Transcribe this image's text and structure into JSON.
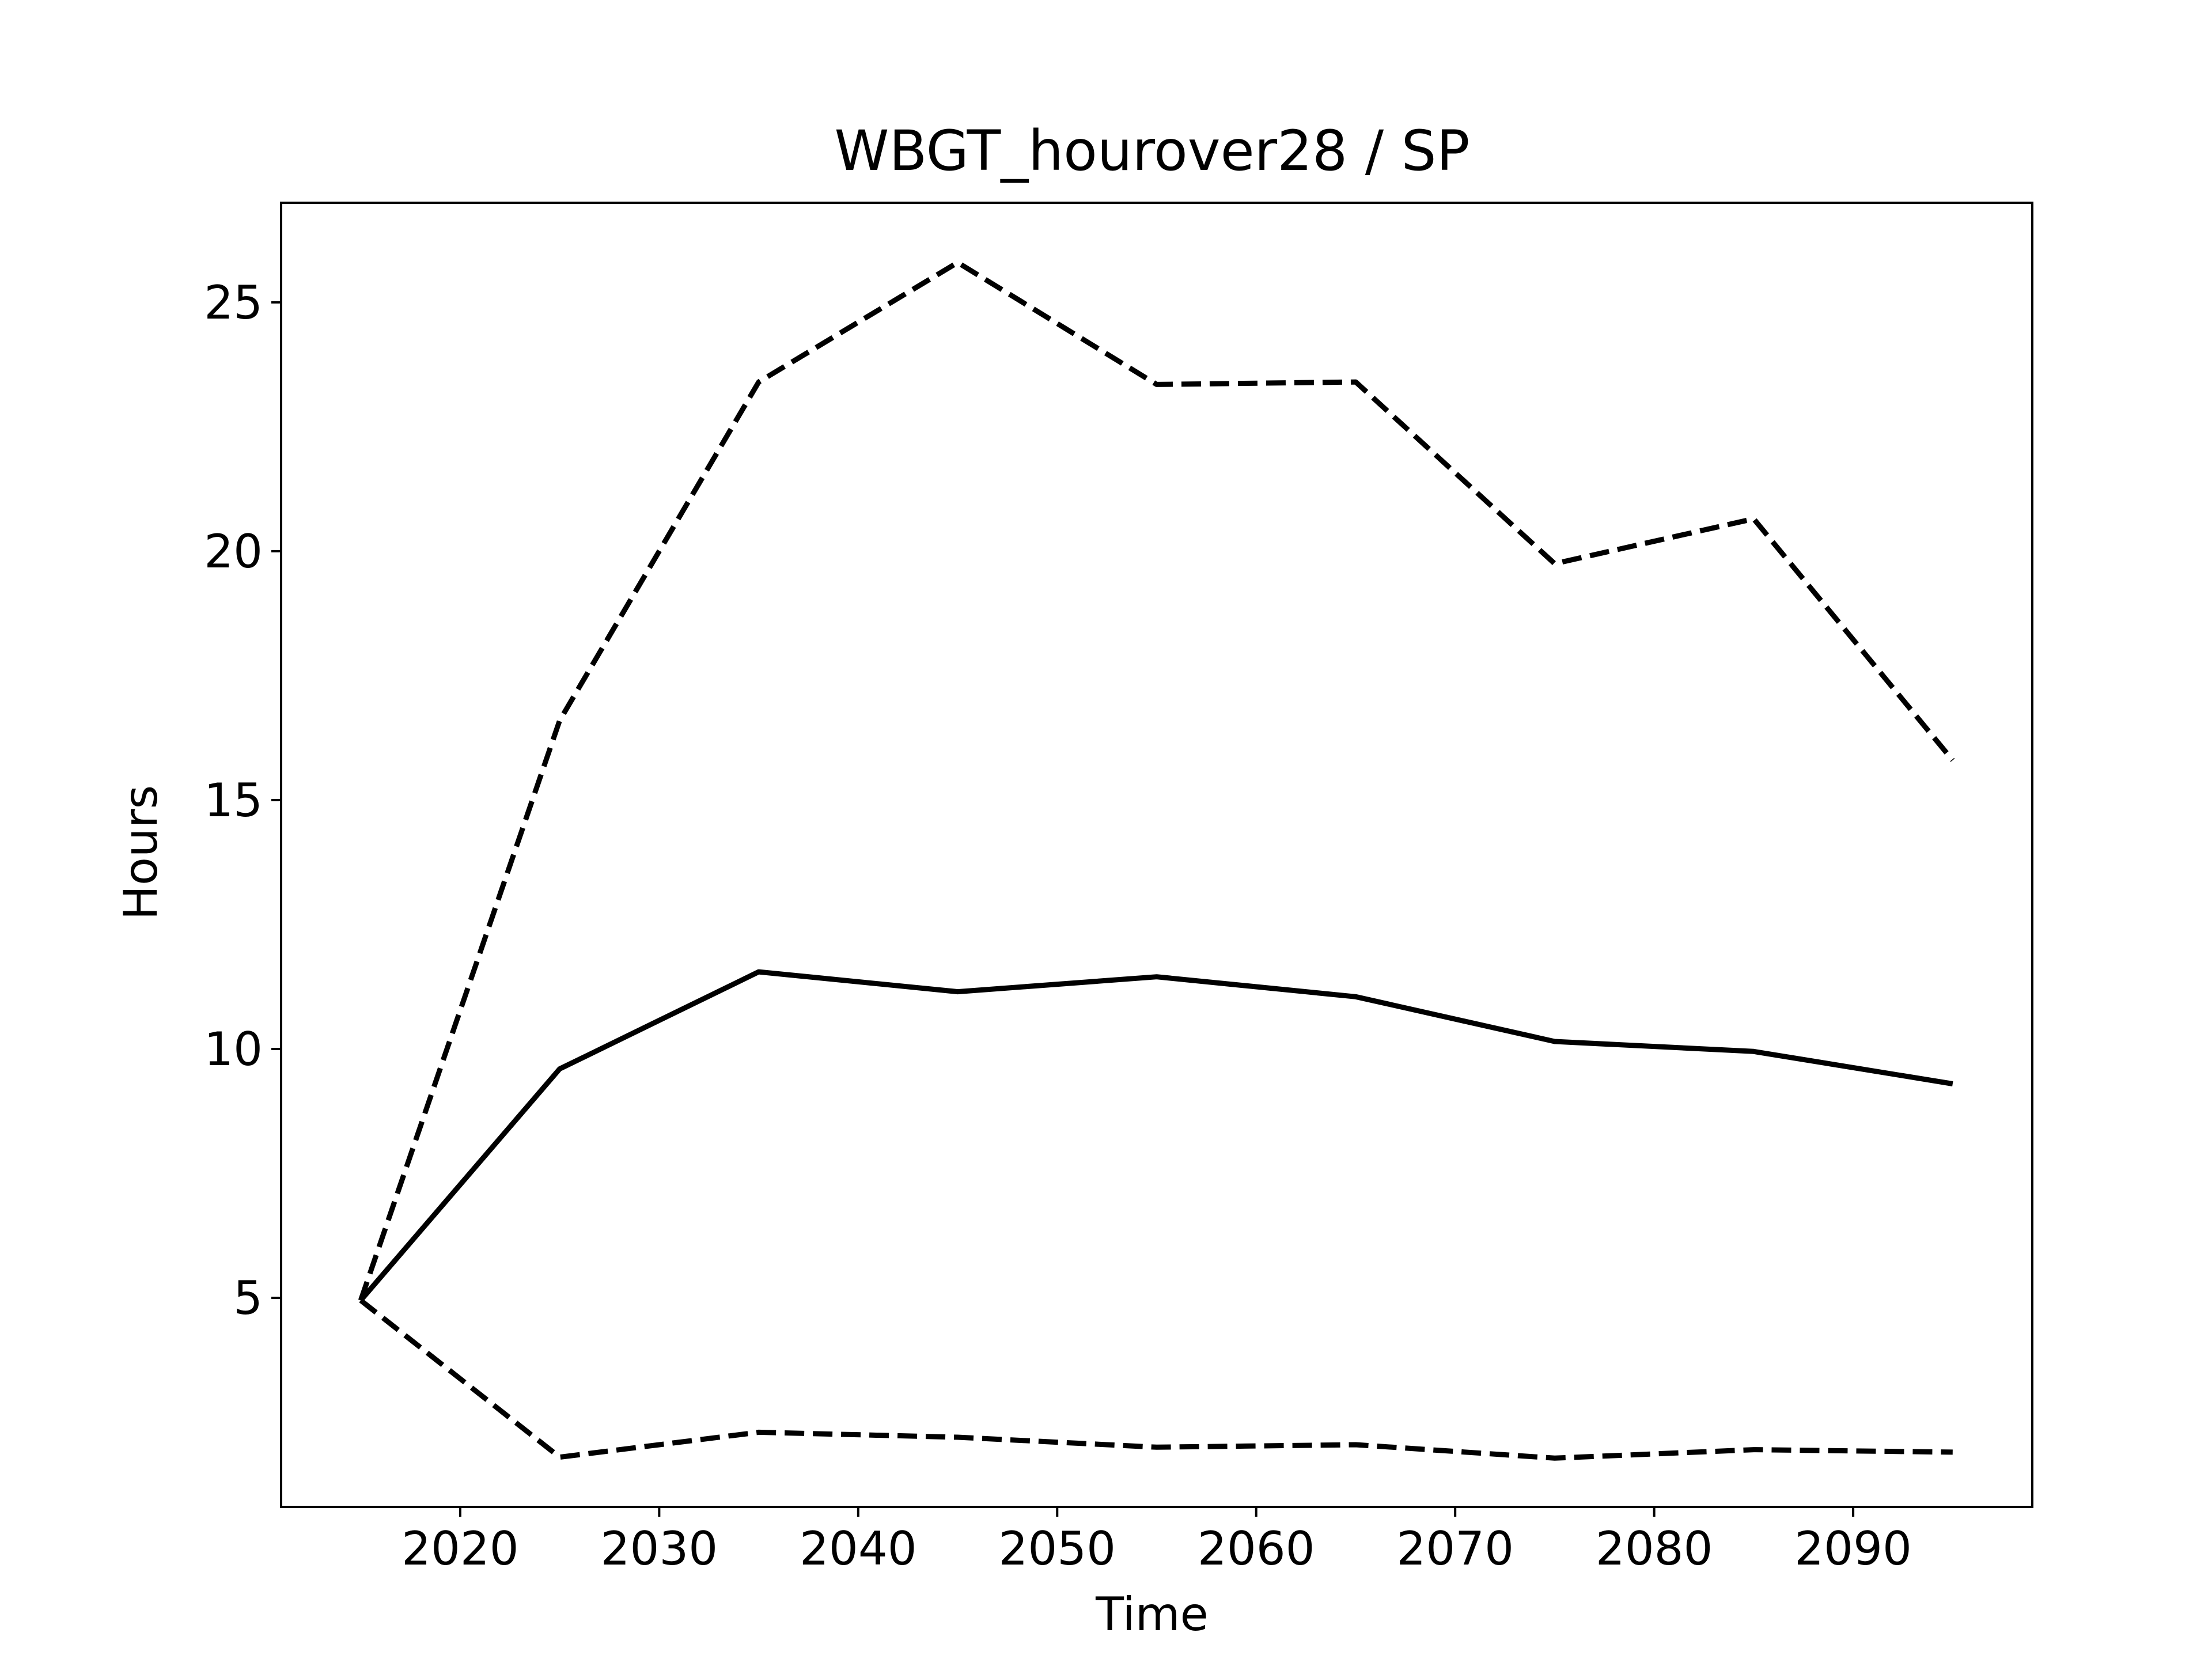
{
  "chart_data": {
    "type": "line",
    "title": "WBGT_hourover28 / SP",
    "xlabel": "Time",
    "ylabel": "Hours",
    "xlim": [
      2011,
      2099
    ],
    "ylim": [
      0.8,
      27
    ],
    "grid": false,
    "x_ticks": [
      2020,
      2030,
      2040,
      2050,
      2060,
      2070,
      2080,
      2090
    ],
    "y_ticks": [
      5,
      10,
      15,
      20,
      25
    ],
    "x": [
      2015,
      2025,
      2035,
      2045,
      2055,
      2065,
      2075,
      2085,
      2095
    ],
    "series": [
      {
        "style": "solid",
        "color": "#000000",
        "values": [
          4.95,
          9.6,
          11.55,
          11.15,
          11.45,
          11.05,
          10.15,
          9.95,
          9.3
        ]
      },
      {
        "style": "dashed",
        "color": "#000000",
        "values": [
          4.95,
          16.6,
          23.4,
          25.8,
          23.35,
          23.4,
          19.75,
          20.65,
          15.8
        ]
      },
      {
        "style": "dashed",
        "color": "#000000",
        "values": [
          4.95,
          1.8,
          2.3,
          2.2,
          2.0,
          2.05,
          1.78,
          1.95,
          1.9
        ]
      }
    ]
  }
}
